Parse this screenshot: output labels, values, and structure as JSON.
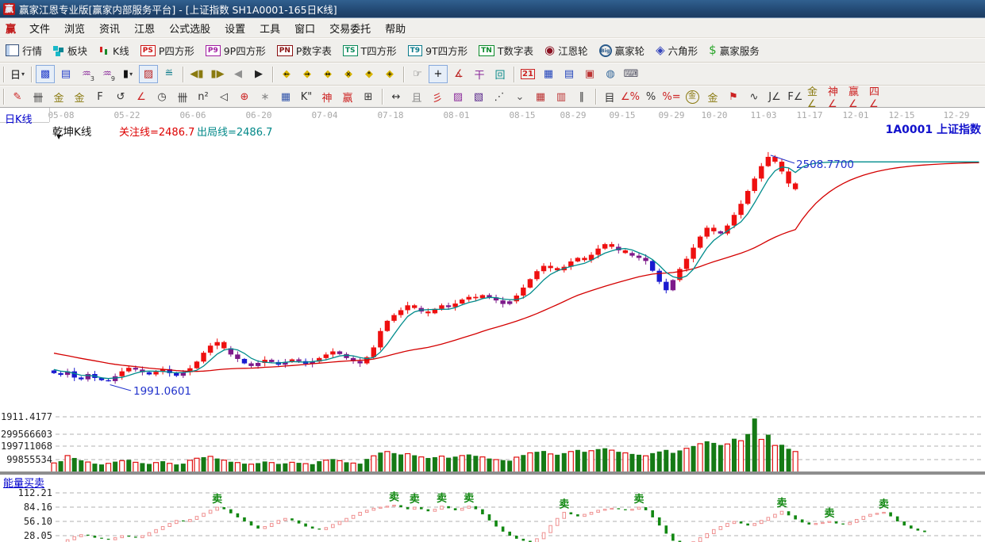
{
  "window": {
    "title": "赢家江恩专业版[赢家内部服务平台] - [上证指数  SH1A0001-165日K线]",
    "logo_text": "赢"
  },
  "menu": {
    "logo": "赢",
    "items": [
      "文件",
      "浏览",
      "资讯",
      "江恩",
      "公式选股",
      "设置",
      "工具",
      "窗口",
      "交易委托",
      "帮助"
    ]
  },
  "toolbar_main": [
    {
      "icon": "grid",
      "label": "行情"
    },
    {
      "icon": "blocks",
      "label": "板块"
    },
    {
      "icon": "kline",
      "label": "K线"
    },
    {
      "icon": "badge",
      "text": "PS",
      "color": "#cc1111",
      "label": "P四方形"
    },
    {
      "icon": "badge",
      "text": "P9",
      "color": "#a11ca1",
      "label": "9P四方形"
    },
    {
      "icon": "badge",
      "text": "PN",
      "color": "#8a1111",
      "label": "P数字表"
    },
    {
      "icon": "badge",
      "text": "TS",
      "color": "#0a8a5a",
      "label": "T四方形"
    },
    {
      "icon": "badge",
      "text": "T9",
      "color": "#0a7a8a",
      "label": "9T四方形"
    },
    {
      "icon": "badge",
      "text": "TN",
      "color": "#0a8a2a",
      "label": "T数字表"
    },
    {
      "icon": "wheel",
      "glyph": "◉",
      "color": "#8a1020",
      "label": "江恩轮"
    },
    {
      "icon": "bigwheel",
      "text": "Big",
      "label": "赢家轮"
    },
    {
      "icon": "hexwheel",
      "glyph": "◈",
      "color": "#3344bb",
      "label": "六角形"
    },
    {
      "icon": "dollar",
      "glyph": "$",
      "color": "#28a428",
      "label": "赢家服务"
    }
  ],
  "toolbar_nav": [
    [
      {
        "t": "日",
        "c": "#111",
        "caret": true
      }
    ],
    [
      {
        "t": "▩",
        "c": "#2a44cc",
        "pressed": true
      },
      {
        "t": "▤",
        "c": "#2a44cc"
      },
      {
        "t": "♒",
        "c": "#8a2a9a",
        "sub": "3"
      },
      {
        "t": "♒",
        "c": "#8a2a9a",
        "sub": "9"
      },
      {
        "t": "▮",
        "c": "#111",
        "caret": true
      },
      {
        "t": "▨",
        "c": "#bb2020",
        "pressed": true
      },
      {
        "t": "≝",
        "c": "#0a7a8a"
      }
    ],
    [
      {
        "t": "◀▮",
        "c": "#8a7a10"
      },
      {
        "t": "▮▶",
        "c": "#8a7a10"
      },
      {
        "t": "◀",
        "c": "#909090"
      },
      {
        "t": "▶",
        "c": "#222"
      }
    ],
    [
      {
        "t": "◆",
        "c": "#d8b400",
        "ov": "←"
      },
      {
        "t": "◆",
        "c": "#d8b400",
        "ov": "→"
      },
      {
        "t": "◆",
        "c": "#d8b400",
        "ov": "↔"
      },
      {
        "t": "◆",
        "c": "#d8b400",
        "ov": "×"
      },
      {
        "t": "◆",
        "c": "#d8b400",
        "ov": "*"
      },
      {
        "t": "◆",
        "c": "#d8b400",
        "ov": "+"
      }
    ],
    [
      {
        "t": "☞",
        "c": "#555"
      },
      {
        "t": "+",
        "c": "#111",
        "pressed": true
      },
      {
        "t": "∡",
        "c": "#bb2222"
      },
      {
        "t": "干",
        "c": "#8a2a9a"
      },
      {
        "t": "回",
        "c": "#0a8a8a"
      }
    ],
    [
      {
        "t": "21",
        "c": "#cc2222",
        "boxed": true
      },
      {
        "t": "▦",
        "c": "#2244bb"
      },
      {
        "t": "▤",
        "c": "#2244bb"
      },
      {
        "t": "▣",
        "c": "#bb3333"
      },
      {
        "t": "◍",
        "c": "#336699"
      },
      {
        "t": "⌨",
        "c": "#555566"
      }
    ]
  ],
  "toolbar_draw": [
    [
      {
        "t": "✎",
        "c": "#cc2222"
      },
      {
        "t": "卌",
        "c": "#333"
      },
      {
        "t": "金",
        "c": "#8a7a10"
      },
      {
        "t": "金",
        "c": "#8a7a10"
      },
      {
        "t": "F",
        "c": "#333"
      },
      {
        "t": "↺",
        "c": "#333"
      },
      {
        "t": "∠",
        "c": "#cc2222"
      },
      {
        "t": "◷",
        "c": "#333"
      },
      {
        "t": "卌",
        "c": "#333"
      },
      {
        "t": "n²",
        "c": "#333"
      },
      {
        "t": "◁",
        "c": "#333"
      },
      {
        "t": "⊕",
        "c": "#cc2222"
      },
      {
        "t": "∗",
        "c": "#888"
      },
      {
        "t": "▦",
        "c": "#3355aa"
      },
      {
        "t": "K\"",
        "c": "#333"
      },
      {
        "t": "神",
        "c": "#cc2222"
      },
      {
        "t": "赢",
        "c": "#cc2222"
      },
      {
        "t": "⊞",
        "c": "#333"
      }
    ],
    [
      {
        "t": "↔",
        "c": "#333"
      },
      {
        "t": "且",
        "c": "#888"
      },
      {
        "t": "彡",
        "c": "#cc2222"
      },
      {
        "t": "▨",
        "c": "#8a2a9a"
      },
      {
        "t": "▧",
        "c": "#552288"
      },
      {
        "t": "⋰",
        "c": "#333"
      },
      {
        "t": "⌄",
        "c": "#555"
      },
      {
        "t": "▦",
        "c": "#bb3333"
      },
      {
        "t": "▥",
        "c": "#bb3333"
      },
      {
        "t": "∥",
        "c": "#333"
      }
    ],
    [
      {
        "t": "目",
        "c": "#333"
      },
      {
        "t": "∠%",
        "c": "#cc2222"
      },
      {
        "t": "%",
        "c": "#333"
      },
      {
        "t": "%=",
        "c": "#cc2222"
      },
      {
        "t": "金",
        "c": "#8a7a10",
        "circ": true
      },
      {
        "t": "金",
        "c": "#8a7a10"
      },
      {
        "t": "⚑",
        "c": "#cc2222"
      },
      {
        "t": "∿",
        "c": "#333"
      },
      {
        "t": "J∠",
        "c": "#333"
      },
      {
        "t": "F∠",
        "c": "#333"
      },
      {
        "t": "金∠",
        "c": "#8a7a10"
      },
      {
        "t": "神∠",
        "c": "#cc2222"
      },
      {
        "t": "赢∠",
        "c": "#cc2222"
      },
      {
        "t": "四∠",
        "c": "#cc2222"
      }
    ]
  ],
  "chart_header": {
    "period_label": "日K线",
    "kline_type": "乾坤K线",
    "watch_line": "关注线=2486.7",
    "exit_line": "出局线=2486.7",
    "symbol_label": "1A0001 上证指数"
  },
  "chart_data": {
    "type": "candlestick+volume+oscillator",
    "symbol": "1A0001 上证指数",
    "period": "日K线 165日",
    "x_axis": {
      "labels": [
        [
          "05-08",
          77
        ],
        [
          "05-22",
          160
        ],
        [
          "06-06",
          243
        ],
        [
          "06-20",
          326
        ],
        [
          "07-04",
          409
        ],
        [
          "07-18",
          492
        ],
        [
          "08-01",
          575
        ],
        [
          "08-15",
          658
        ],
        [
          "08-29",
          722
        ],
        [
          "09-15",
          784
        ],
        [
          "09-29",
          846
        ],
        [
          "10-20",
          900
        ],
        [
          "11-03",
          962
        ],
        [
          "11-17",
          1020
        ],
        [
          "12-01",
          1078
        ],
        [
          "12-15",
          1136
        ],
        [
          "12-29",
          1205
        ]
      ]
    },
    "price_axis": {
      "bottom_label": "1911.4177"
    },
    "annotations": {
      "peak_label": "2508.7700",
      "peak_value": 2508.77,
      "low_label": "1991.0601",
      "low_value": 1991.06,
      "watch_value": 2486.7
    },
    "candles": {
      "closes": [
        2010,
        2006,
        2014,
        2000,
        1996,
        2008,
        1999,
        1994,
        1992,
        2003,
        2014,
        2022,
        2018,
        2012,
        2007,
        2013,
        2019,
        2010,
        2004,
        2012,
        2021,
        2036,
        2056,
        2072,
        2080,
        2066,
        2052,
        2042,
        2032,
        2026,
        2033,
        2040,
        2035,
        2029,
        2035,
        2041,
        2037,
        2031,
        2036,
        2044,
        2052,
        2059,
        2053,
        2044,
        2037,
        2032,
        2046,
        2068,
        2105,
        2128,
        2141,
        2152,
        2163,
        2157,
        2149,
        2145,
        2155,
        2163,
        2159,
        2167,
        2176,
        2182,
        2179,
        2186,
        2181,
        2174,
        2166,
        2172,
        2185,
        2203,
        2222,
        2240,
        2252,
        2247,
        2242,
        2250,
        2262,
        2270,
        2265,
        2277,
        2291,
        2301,
        2295,
        2287,
        2281,
        2275,
        2270,
        2263,
        2241,
        2216,
        2197,
        2220,
        2245,
        2268,
        2293,
        2318,
        2338,
        2330,
        2325,
        2343,
        2367,
        2392,
        2421,
        2449,
        2477,
        2498,
        2487,
        2465,
        2438,
        2425
      ],
      "colors": "BBPBBPBBBPRRPPBRRBBPRRRRRRPPBPPRPBPRPBPRRRPPPPRRRRRRRRPRRRPRRRRRPPPPRRRRRRRRRRRRRRRPRPPPBBBPRRRRRRPRRRRRRRRRRR",
      "color_map": {
        "R": "#ee1010",
        "P": "#7d1a8a",
        "B": "#1a1ad0"
      }
    },
    "moving_averages": {
      "fast_color": "#008c8c",
      "slow_color": "#d40000"
    },
    "volume": {
      "grid_labels": [
        "299566603",
        "199711068",
        "99855534"
      ],
      "values_millions": [
        75,
        88,
        130,
        112,
        95,
        82,
        70,
        64,
        72,
        85,
        92,
        98,
        80,
        74,
        68,
        78,
        88,
        72,
        64,
        70,
        95,
        110,
        118,
        124,
        108,
        96,
        84,
        78,
        70,
        66,
        74,
        86,
        78,
        68,
        72,
        80,
        76,
        70,
        66,
        88,
        96,
        104,
        92,
        80,
        74,
        70,
        105,
        128,
        152,
        160,
        148,
        138,
        144,
        132,
        120,
        112,
        118,
        126,
        114,
        122,
        130,
        138,
        128,
        120,
        108,
        100,
        96,
        92,
        118,
        134,
        150,
        158,
        164,
        142,
        136,
        148,
        160,
        172,
        158,
        166,
        178,
        184,
        170,
        158,
        150,
        142,
        136,
        128,
        148,
        160,
        172,
        150,
        168,
        184,
        200,
        218,
        236,
        224,
        208,
        216,
        255,
        240,
        290,
        405,
        250,
        285,
        205,
        210,
        180,
        160
      ],
      "types": "RGRGGRGGRGRGRGGRGRGGRRGRGRGRGRGGRGGRGRGGRGRGRGGRGRGGRGRGGRGGRGGRGRGGRGRGGRGGRGGRGGRGRGGRGGGGGRGRGGGRGRGGRGRGGR",
      "type_colors": {
        "G": "#157a15",
        "R": "#e01010"
      }
    },
    "oscillator": {
      "title": "能量买卖",
      "grid_labels": [
        "112.21",
        "84.16",
        "56.10",
        "28.05"
      ],
      "grid_values": [
        112.21,
        84.16,
        56.1,
        28.05
      ],
      "values": [
        10,
        14,
        20,
        26,
        30,
        28,
        24,
        22,
        20,
        24,
        28,
        26,
        24,
        28,
        34,
        40,
        46,
        52,
        58,
        56,
        60,
        66,
        72,
        78,
        84,
        80,
        72,
        64,
        56,
        48,
        42,
        46,
        52,
        58,
        62,
        58,
        52,
        46,
        42,
        40,
        44,
        50,
        56,
        62,
        68,
        74,
        78,
        82,
        84,
        86,
        88,
        84,
        80,
        84,
        80,
        76,
        80,
        86,
        82,
        78,
        82,
        86,
        80,
        70,
        58,
        46,
        36,
        28,
        22,
        18,
        15,
        22,
        34,
        48,
        62,
        74,
        70,
        66,
        70,
        74,
        78,
        80,
        82,
        80,
        78,
        80,
        84,
        78,
        64,
        48,
        32,
        18,
        12,
        10,
        16,
        24,
        32,
        40,
        46,
        52,
        56,
        52,
        48,
        52,
        58,
        64,
        70,
        76,
        68,
        60,
        54,
        50,
        52,
        54,
        56,
        52,
        50,
        54,
        60,
        66,
        70,
        72,
        74,
        66,
        56,
        48,
        42,
        38,
        35
      ],
      "colors": "GPPPPGGGGPPGGPPPPPPGPPPPPGGGGGGPPPPGGGGGPPPPPPPPPPPGGPGGPPGGPPGGGGGGGGGPPPPPGGPPPPPGGPPGGGGGGGPPPPPPPGGPPPPPGGGGPPPGGPPPPPPGGGGGG",
      "color_map": {
        "P": "#ef9090",
        "G": "#128812"
      },
      "sell_marker_text": "卖",
      "sell_markers": [
        24,
        50,
        53,
        57,
        61,
        75,
        86,
        107,
        114,
        122
      ]
    }
  }
}
